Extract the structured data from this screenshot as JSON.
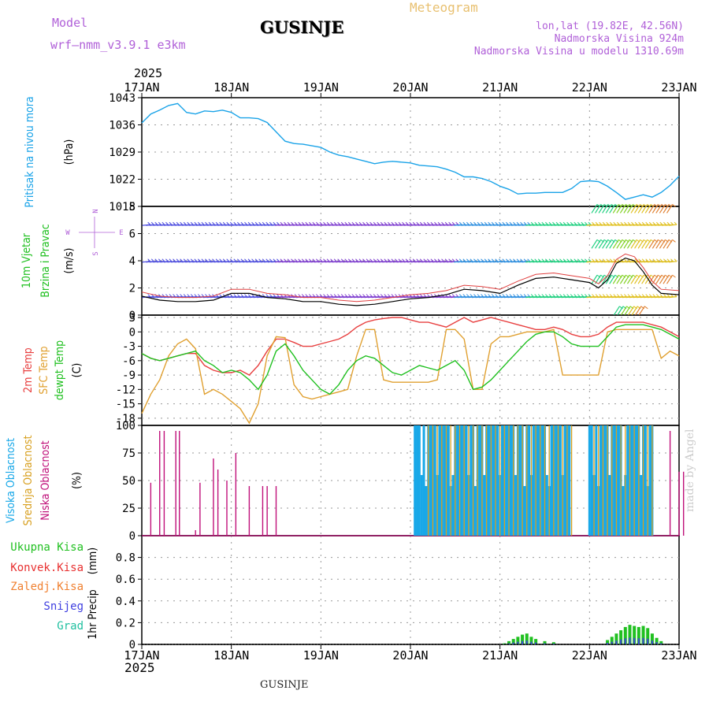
{
  "header": {
    "model_label": "Model",
    "model_name": "wrf—nmm_v3.9.1  e3km",
    "city": "GUSINJE",
    "meteogram_label": "Meteogram",
    "location": "lon,lat (19.82E, 42.56N)",
    "elevation": "Nadmorska Visina 924m",
    "model_elevation": "Nadmorska Visina u modelu 1310.69m",
    "year_top": "2025",
    "year_bottom": "2025",
    "footer_city": "GUSINJE",
    "credit": "made by Angel"
  },
  "colors": {
    "pressure": "#1aa3e8",
    "temp2m": "#e84040",
    "sfc": "#e0a030",
    "dew": "#20c020",
    "cloud_high": "#18a8e8",
    "cloud_mid": "#d8a020",
    "cloud_low": "#c0107a",
    "wind_black": "#000000",
    "wind_label": "#20c020",
    "precip_total": "#20c020",
    "precip_conv": "#e83030",
    "precip_frozen": "#f08030",
    "precip_snow": "#4040e0",
    "precip_graupel": "#20c0a0"
  },
  "chart_data": [
    {
      "type": "line",
      "id": "pressure",
      "ylabel": "Pritisak na nivou mora",
      "unit": "(hPa)",
      "ylim": [
        1015,
        1043
      ],
      "yticks": [
        "1043",
        "1036",
        "1029",
        "1022",
        "1015"
      ],
      "categories": [
        "17JAN",
        "18JAN",
        "19JAN",
        "20JAN",
        "21JAN",
        "22JAN",
        "23JAN"
      ],
      "x": [
        0,
        0.1,
        0.2,
        0.3,
        0.4,
        0.5,
        0.6,
        0.7,
        0.8,
        0.9,
        1.0,
        1.1,
        1.2,
        1.3,
        1.4,
        1.5,
        1.6,
        1.7,
        1.8,
        1.9,
        2.0,
        2.1,
        2.2,
        2.3,
        2.4,
        2.5,
        2.6,
        2.7,
        2.8,
        2.9,
        3.0,
        3.1,
        3.2,
        3.3,
        3.4,
        3.5,
        3.6,
        3.7,
        3.8,
        3.9,
        4.0,
        4.1,
        4.2,
        4.3,
        4.4,
        4.5,
        4.6,
        4.7,
        4.8,
        4.9,
        5.0,
        5.1,
        5.2,
        5.3,
        5.4,
        5.5,
        5.6,
        5.7,
        5.8,
        5.9,
        6.0
      ],
      "values": [
        1036.5,
        1038.8,
        1039.8,
        1041,
        1041.5,
        1039.2,
        1038.8,
        1039.6,
        1039.4,
        1039.8,
        1039.2,
        1037.8,
        1037.8,
        1037.6,
        1036.6,
        1034.2,
        1031.8,
        1031.2,
        1031,
        1030.6,
        1030.2,
        1029,
        1028.2,
        1027.8,
        1027.2,
        1026.6,
        1026,
        1026.4,
        1026.6,
        1026.4,
        1026.2,
        1025.6,
        1025.4,
        1025.2,
        1024.6,
        1023.8,
        1022.6,
        1022.6,
        1022.2,
        1021.4,
        1020.2,
        1019.4,
        1018.2,
        1018.4,
        1018.4,
        1018.6,
        1018.6,
        1018.6,
        1019.6,
        1021.4,
        1021.6,
        1021.4,
        1020.2,
        1018.6,
        1016.8,
        1017.4,
        1018,
        1017.4,
        1018.6,
        1020.4,
        1022.8
      ]
    },
    {
      "type": "line",
      "id": "wind",
      "ylabel": "10m Vjetar",
      "ylabel2": "Brzina i Pravac",
      "unit": "(m/s)",
      "compass": {
        "n": "N",
        "s": "S",
        "w": "W",
        "e": "E"
      },
      "ylim": [
        0,
        8
      ],
      "yticks": [
        "8",
        "6",
        "4",
        "2",
        "0"
      ],
      "x": [
        0,
        0.2,
        0.4,
        0.6,
        0.8,
        1.0,
        1.2,
        1.4,
        1.6,
        1.8,
        2.0,
        2.2,
        2.4,
        2.6,
        2.8,
        3.0,
        3.2,
        3.4,
        3.6,
        3.8,
        4.0,
        4.2,
        4.4,
        4.6,
        4.8,
        5.0,
        5.1,
        5.2,
        5.3,
        5.4,
        5.5,
        5.6,
        5.7,
        5.8,
        6.0
      ],
      "values": [
        1.4,
        1.1,
        1.0,
        1.0,
        1.1,
        1.6,
        1.6,
        1.3,
        1.2,
        1.0,
        1.0,
        0.8,
        0.7,
        0.8,
        1.0,
        1.2,
        1.3,
        1.5,
        1.9,
        1.8,
        1.6,
        2.2,
        2.7,
        2.8,
        2.6,
        2.4,
        2.0,
        2.6,
        3.8,
        4.2,
        4.0,
        3.2,
        2.2,
        1.6,
        1.5
      ],
      "barb_rows": [
        6.6,
        3.9,
        1.3
      ],
      "extra_barbs": [
        {
          "y": 7.8,
          "x0": 5.05,
          "x1": 5.9
        },
        {
          "y": 5.2,
          "x0": 5.05,
          "x1": 5.9
        },
        {
          "y": 2.6,
          "x0": 5.05,
          "x1": 5.9
        },
        {
          "y": 0.3,
          "x0": 5.3,
          "x1": 5.6
        }
      ]
    },
    {
      "type": "line",
      "id": "temperature",
      "ylabel": "2m Temp",
      "ylabel2": "SFC Temp",
      "ylabel3": "dewpt Temp",
      "unit": "(C)",
      "ylim": [
        -19.5,
        3.5
      ],
      "yticks": [
        "3",
        "0",
        "-3",
        "-6",
        "-9",
        "-12",
        "-15",
        "-18"
      ],
      "x": [
        0,
        0.1,
        0.2,
        0.3,
        0.4,
        0.5,
        0.6,
        0.7,
        0.8,
        0.9,
        1.0,
        1.1,
        1.2,
        1.3,
        1.4,
        1.5,
        1.6,
        1.7,
        1.8,
        1.9,
        2.0,
        2.1,
        2.2,
        2.3,
        2.4,
        2.5,
        2.6,
        2.7,
        2.8,
        2.9,
        3.0,
        3.1,
        3.2,
        3.3,
        3.4,
        3.5,
        3.6,
        3.7,
        3.8,
        3.9,
        4.0,
        4.1,
        4.2,
        4.3,
        4.4,
        4.5,
        4.6,
        4.7,
        4.8,
        4.9,
        5.0,
        5.1,
        5.2,
        5.3,
        5.4,
        5.5,
        5.6,
        5.7,
        5.8,
        5.9,
        6.0
      ],
      "series": [
        {
          "name": "2m Temp",
          "color_key": "temp2m",
          "values": [
            -4.5,
            -5.5,
            -6,
            -5.5,
            -5,
            -4.5,
            -4.5,
            -7,
            -8,
            -8.5,
            -8.5,
            -8,
            -9,
            -7,
            -4,
            -1.5,
            -1.5,
            -2.2,
            -3,
            -3,
            -2.5,
            -2,
            -1.5,
            -0.5,
            1,
            2,
            2.5,
            2.8,
            3,
            3,
            2.5,
            2,
            2,
            1.5,
            1,
            2,
            3,
            2,
            2.5,
            3,
            2.5,
            2,
            1.5,
            1,
            0.5,
            0.5,
            1,
            0.5,
            -0.5,
            -1,
            -1,
            -0.5,
            1,
            2,
            2,
            2,
            2,
            1.5,
            1,
            0,
            -1
          ]
        },
        {
          "name": "SFC Temp",
          "color_key": "sfc",
          "values": [
            -17,
            -13,
            -10,
            -5,
            -2.5,
            -1.5,
            -3.5,
            -13,
            -12,
            -13,
            -14.5,
            -16,
            -19,
            -15,
            -5,
            -1,
            -1.2,
            -11,
            -13.5,
            -14,
            -13.5,
            -13,
            -12.5,
            -12,
            -5,
            0.5,
            0.5,
            -10,
            -10.5,
            -10.5,
            -10.5,
            -10.5,
            -10.5,
            -10,
            0.5,
            0.5,
            -1.5,
            -12,
            -12,
            -2.5,
            -1,
            -1,
            -0.5,
            0,
            0,
            0,
            0.5,
            -9,
            -9,
            -9,
            -9,
            -9,
            0,
            0.5,
            0.5,
            0.5,
            0.5,
            0.5,
            -5.5,
            -4,
            -5
          ]
        },
        {
          "name": "dewpt Temp",
          "color_key": "dew",
          "values": [
            -4.5,
            -5.5,
            -6,
            -5.5,
            -5,
            -4.5,
            -4,
            -6,
            -7,
            -8.5,
            -8,
            -8.5,
            -10,
            -12,
            -9,
            -4,
            -2.5,
            -5,
            -8,
            -10,
            -12,
            -13,
            -11,
            -8,
            -6,
            -5,
            -5.5,
            -7,
            -8.5,
            -9,
            -8,
            -7,
            -7.5,
            -8,
            -7,
            -6,
            -8,
            -12,
            -11.5,
            -10,
            -8,
            -6,
            -4,
            -2,
            -0.5,
            0,
            0,
            -1,
            -2.5,
            -3,
            -3,
            -3,
            -1,
            1,
            1.5,
            1.5,
            1.5,
            1,
            0.5,
            -0.5,
            -1.5
          ]
        }
      ]
    },
    {
      "type": "bar",
      "id": "clouds",
      "ylabel": "Visoka Oblacnost",
      "ylabel2": "Srednja Oblacnost",
      "ylabel3": "Niska Oblacnost",
      "unit": "(%)",
      "ylim": [
        0,
        100
      ],
      "yticks": [
        "100",
        "75",
        "50",
        "25",
        "0"
      ],
      "low": [
        [
          0.1,
          48
        ],
        [
          0.2,
          95
        ],
        [
          0.25,
          95
        ],
        [
          0.38,
          95
        ],
        [
          0.42,
          95
        ],
        [
          0.6,
          5
        ],
        [
          0.65,
          48
        ],
        [
          0.8,
          70
        ],
        [
          0.85,
          60
        ],
        [
          0.95,
          50
        ],
        [
          1.05,
          75
        ],
        [
          1.2,
          45
        ],
        [
          1.35,
          45
        ],
        [
          1.4,
          45
        ],
        [
          1.5,
          45
        ],
        [
          5.45,
          95
        ],
        [
          5.9,
          95
        ],
        [
          6.0,
          58
        ],
        [
          6.05,
          58
        ],
        [
          3.95,
          95
        ],
        [
          4.15,
          95
        ],
        [
          4.7,
          8
        ],
        [
          4.75,
          8
        ],
        [
          5.1,
          8
        ]
      ],
      "high_start": 3.05,
      "high_end": 5.85,
      "high_gaps": [
        [
          4.8,
          5.0
        ],
        [
          5.72,
          5.85
        ]
      ],
      "mid_start": 3.2,
      "mid_end": 5.75
    },
    {
      "type": "bar",
      "id": "precip",
      "labels": [
        "Ukupna  Kisa",
        "Konvek.Kisa",
        "Zaledj.Kisa",
        "Snijeg",
        "Grad"
      ],
      "ylabel": "1hr Precip",
      "unit": "(mm)",
      "ylim": [
        0,
        1.0
      ],
      "yticks": [
        "0.8",
        "0.6",
        "0.4",
        "0.2",
        "0"
      ],
      "x": [
        4.05,
        4.1,
        4.15,
        4.2,
        4.25,
        4.3,
        4.35,
        4.4,
        4.5,
        4.6,
        5.2,
        5.25,
        5.3,
        5.35,
        5.4,
        5.45,
        5.5,
        5.55,
        5.6,
        5.65,
        5.7,
        5.75,
        5.8
      ],
      "values": [
        0.01,
        0.03,
        0.05,
        0.07,
        0.09,
        0.1,
        0.07,
        0.05,
        0.03,
        0.02,
        0.04,
        0.07,
        0.1,
        0.13,
        0.16,
        0.18,
        0.17,
        0.16,
        0.17,
        0.15,
        0.1,
        0.06,
        0.03
      ],
      "snow_fraction": 0.35
    }
  ]
}
